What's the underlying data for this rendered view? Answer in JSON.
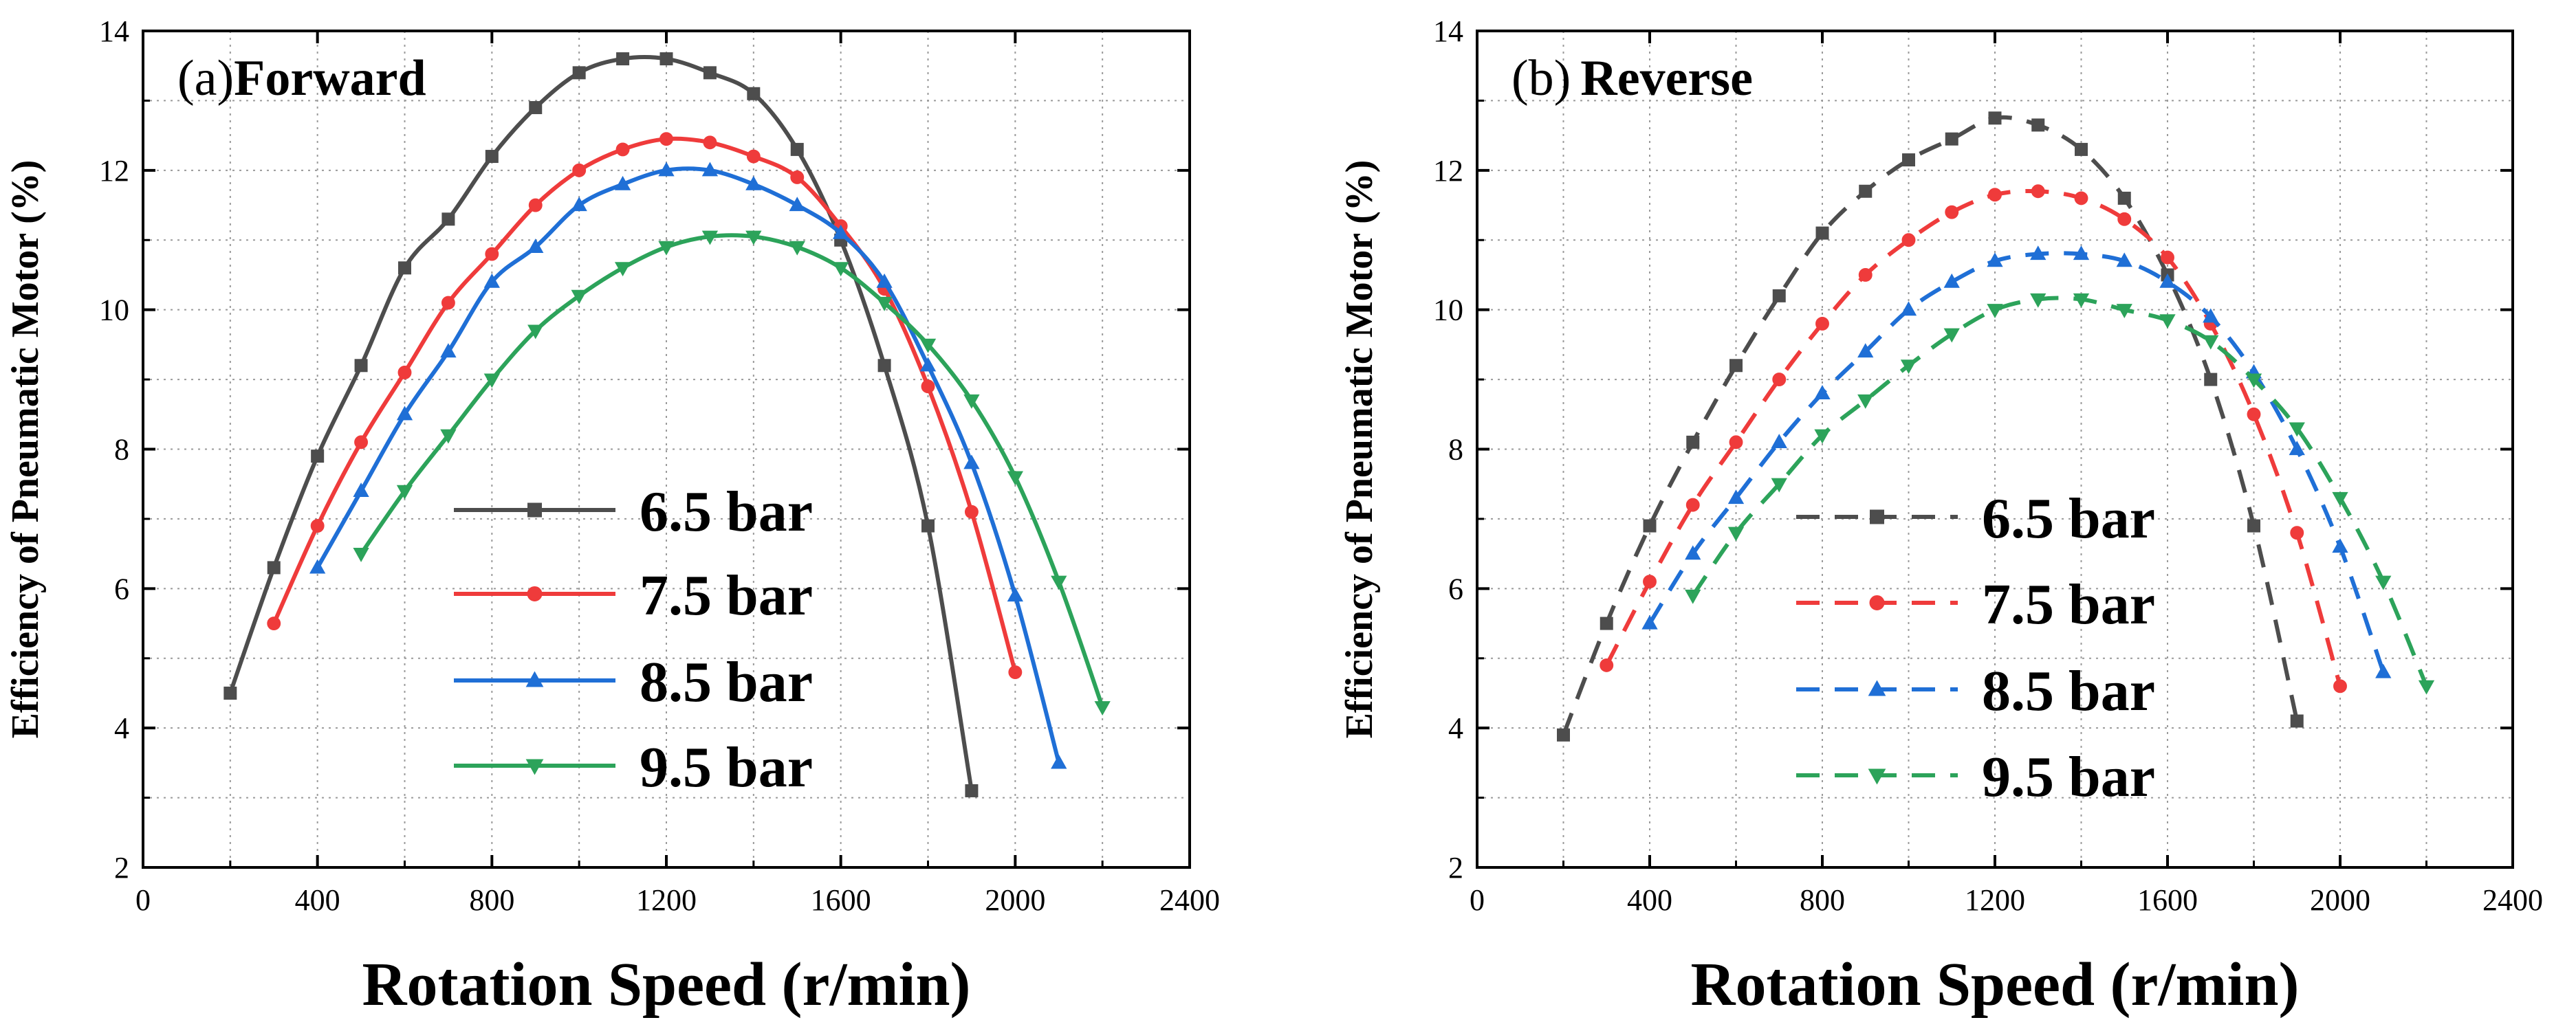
{
  "colors": {
    "6.5 bar": "#4d4d4d",
    "7.5 bar": "#ef3b3b",
    "8.5 bar": "#1f6fd6",
    "9.5 bar": "#2ca35a"
  },
  "chart_data": [
    {
      "type": "line",
      "panel_label": "(a)",
      "title": "Forward",
      "line_style": "solid",
      "xlabel": "Rotation Speed (r/min)",
      "ylabel": "Efficiency of Pneumatic Motor (%)",
      "xlim": [
        0,
        2400
      ],
      "ylim": [
        2,
        14
      ],
      "xticks": [
        0,
        400,
        800,
        1200,
        1600,
        2000,
        2400
      ],
      "yticks": [
        2,
        4,
        6,
        8,
        10,
        12,
        14
      ],
      "grid": true,
      "legend_position": "lower-center",
      "series": [
        {
          "name": "6.5 bar",
          "marker": "square",
          "x": [
            200,
            300,
            400,
            500,
            600,
            700,
            800,
            900,
            1000,
            1100,
            1200,
            1300,
            1400,
            1500,
            1600,
            1700,
            1800,
            1900
          ],
          "y": [
            4.5,
            6.3,
            7.9,
            9.2,
            10.6,
            11.3,
            12.2,
            12.9,
            13.4,
            13.6,
            13.6,
            13.4,
            13.1,
            12.3,
            11.0,
            9.2,
            6.9,
            3.1
          ]
        },
        {
          "name": "7.5 bar",
          "marker": "circle",
          "x": [
            300,
            400,
            500,
            600,
            700,
            800,
            900,
            1000,
            1100,
            1200,
            1300,
            1400,
            1500,
            1600,
            1700,
            1800,
            1900,
            2000
          ],
          "y": [
            5.5,
            6.9,
            8.1,
            9.1,
            10.1,
            10.8,
            11.5,
            12.0,
            12.3,
            12.45,
            12.4,
            12.2,
            11.9,
            11.2,
            10.3,
            8.9,
            7.1,
            4.8
          ]
        },
        {
          "name": "8.5 bar",
          "marker": "triangle-up",
          "x": [
            400,
            500,
            600,
            700,
            800,
            900,
            1000,
            1100,
            1200,
            1300,
            1400,
            1500,
            1600,
            1700,
            1800,
            1900,
            2000,
            2100
          ],
          "y": [
            6.3,
            7.4,
            8.5,
            9.4,
            10.4,
            10.9,
            11.5,
            11.8,
            12.0,
            12.0,
            11.8,
            11.5,
            11.1,
            10.4,
            9.2,
            7.8,
            5.9,
            3.5
          ]
        },
        {
          "name": "9.5 bar",
          "marker": "triangle-down",
          "x": [
            500,
            600,
            700,
            800,
            900,
            1000,
            1100,
            1200,
            1300,
            1400,
            1500,
            1600,
            1700,
            1800,
            1900,
            2000,
            2100,
            2200
          ],
          "y": [
            6.5,
            7.4,
            8.2,
            9.0,
            9.7,
            10.2,
            10.6,
            10.9,
            11.05,
            11.05,
            10.9,
            10.6,
            10.1,
            9.5,
            8.7,
            7.6,
            6.1,
            4.3
          ]
        }
      ]
    },
    {
      "type": "line",
      "panel_label": "(b)",
      "title": "Reverse",
      "line_style": "dashed",
      "xlabel": "Rotation Speed (r/min)",
      "ylabel": "Efficiency of Pneumatic Motor (%)",
      "xlim": [
        0,
        2400
      ],
      "ylim": [
        2,
        14
      ],
      "xticks": [
        0,
        400,
        800,
        1200,
        1600,
        2000,
        2400
      ],
      "yticks": [
        2,
        4,
        6,
        8,
        10,
        12,
        14
      ],
      "grid": true,
      "legend_position": "lower-center",
      "series": [
        {
          "name": "6.5 bar",
          "marker": "square",
          "x": [
            200,
            300,
            400,
            500,
            600,
            700,
            800,
            900,
            1000,
            1100,
            1200,
            1300,
            1400,
            1500,
            1600,
            1700,
            1800,
            1900
          ],
          "y": [
            3.9,
            5.5,
            6.9,
            8.1,
            9.2,
            10.2,
            11.1,
            11.7,
            12.15,
            12.45,
            12.75,
            12.65,
            12.3,
            11.6,
            10.5,
            9.0,
            6.9,
            4.1
          ]
        },
        {
          "name": "7.5 bar",
          "marker": "circle",
          "x": [
            300,
            400,
            500,
            600,
            700,
            800,
            900,
            1000,
            1100,
            1200,
            1300,
            1400,
            1500,
            1600,
            1700,
            1800,
            1900,
            2000
          ],
          "y": [
            4.9,
            6.1,
            7.2,
            8.1,
            9.0,
            9.8,
            10.5,
            11.0,
            11.4,
            11.65,
            11.7,
            11.6,
            11.3,
            10.75,
            9.8,
            8.5,
            6.8,
            4.6
          ]
        },
        {
          "name": "8.5 bar",
          "marker": "triangle-up",
          "x": [
            400,
            500,
            600,
            700,
            800,
            900,
            1000,
            1100,
            1200,
            1300,
            1400,
            1500,
            1600,
            1700,
            1800,
            1900,
            2000,
            2100
          ],
          "y": [
            5.5,
            6.5,
            7.3,
            8.1,
            8.8,
            9.4,
            10.0,
            10.4,
            10.7,
            10.8,
            10.8,
            10.7,
            10.4,
            9.9,
            9.1,
            8.0,
            6.6,
            4.8
          ]
        },
        {
          "name": "9.5 bar",
          "marker": "triangle-down",
          "x": [
            500,
            600,
            700,
            800,
            900,
            1000,
            1100,
            1200,
            1300,
            1400,
            1500,
            1600,
            1700,
            1800,
            1900,
            2000,
            2100,
            2200
          ],
          "y": [
            5.9,
            6.8,
            7.5,
            8.2,
            8.7,
            9.2,
            9.65,
            10.0,
            10.15,
            10.15,
            10.0,
            9.85,
            9.55,
            9.0,
            8.3,
            7.3,
            6.1,
            4.6
          ]
        }
      ]
    }
  ]
}
